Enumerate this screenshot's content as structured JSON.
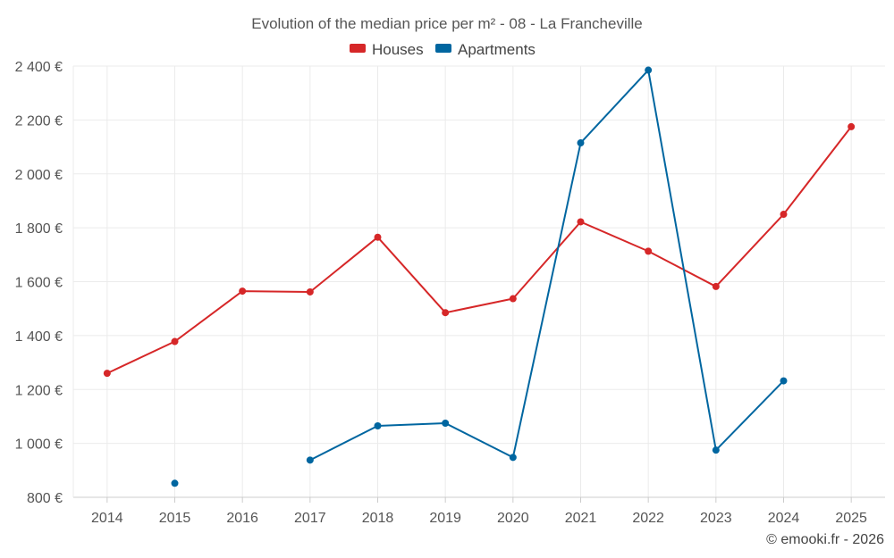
{
  "chart_data": {
    "type": "line",
    "title": "Evolution of the median price per m² - 08 - La Francheville",
    "categories": [
      "2014",
      "2015",
      "2016",
      "2017",
      "2018",
      "2019",
      "2020",
      "2021",
      "2022",
      "2023",
      "2024",
      "2025"
    ],
    "ylim": [
      800,
      2400
    ],
    "yticks": [
      800,
      1000,
      1200,
      1400,
      1600,
      1800,
      2000,
      2200,
      2400
    ],
    "ytick_labels": [
      "800 €",
      "1 000 €",
      "1 200 €",
      "1 400 €",
      "1 600 €",
      "1 800 €",
      "2 000 €",
      "2 200 €",
      "2 400 €"
    ],
    "grid": true,
    "legend_position": "top-center",
    "series": [
      {
        "name": "Houses",
        "color": "#d62728",
        "values": [
          1260,
          1378,
          1565,
          1562,
          1765,
          1485,
          1537,
          1822,
          1713,
          1582,
          1850,
          2175
        ]
      },
      {
        "name": "Apartments",
        "color": "#0066a0",
        "values": [
          null,
          852,
          null,
          938,
          1065,
          1075,
          948,
          2115,
          2385,
          975,
          1232,
          null
        ]
      }
    ],
    "credit": "© emooki.fr - 2026"
  }
}
